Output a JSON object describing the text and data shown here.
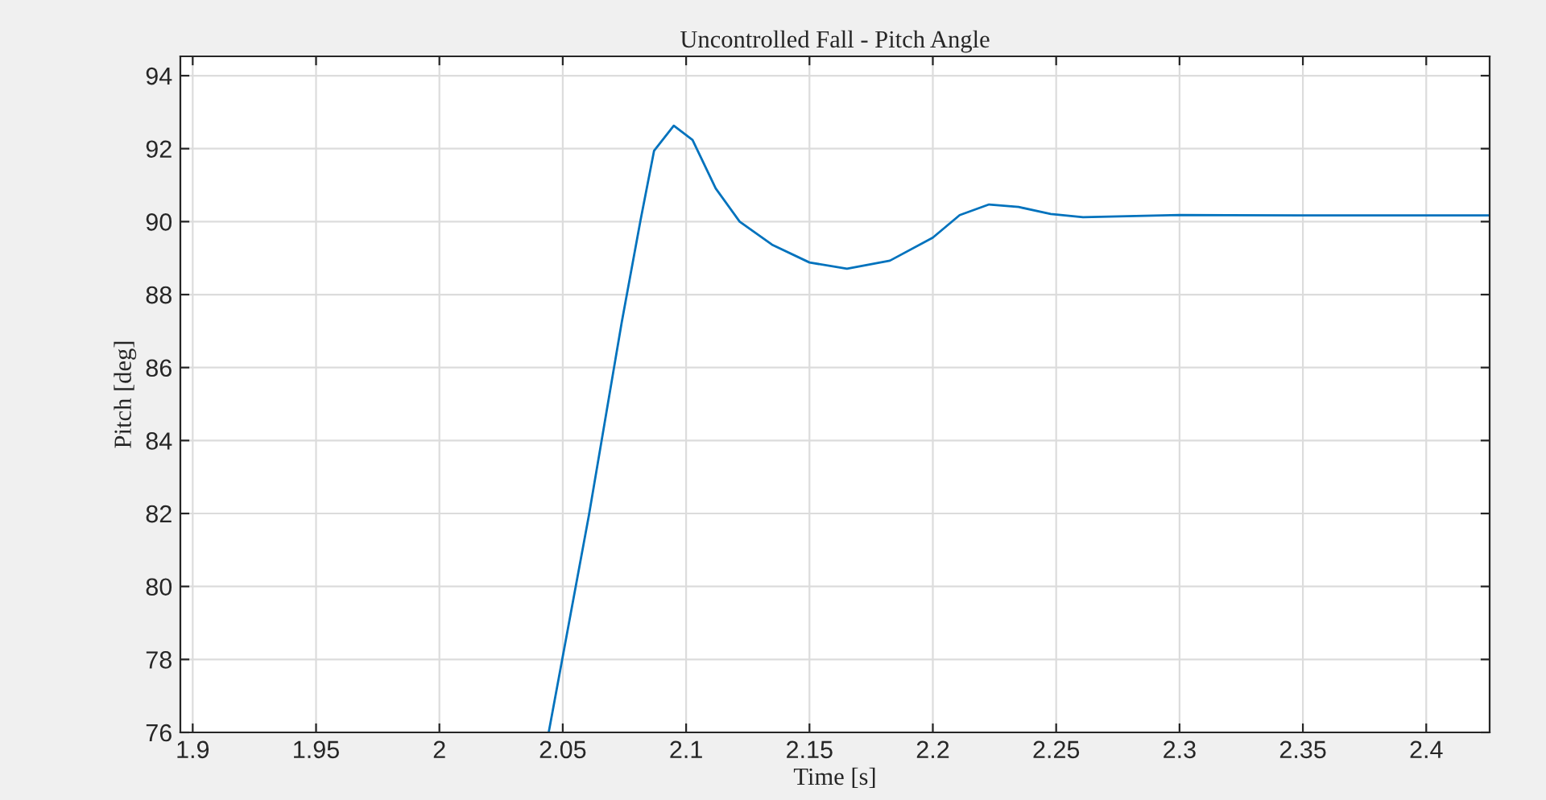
{
  "chart_data": {
    "type": "line",
    "title": "Uncontrolled Fall - Pitch Angle",
    "xlabel": "Time [s]",
    "ylabel": "Pitch [deg]",
    "x": [
      2.0443,
      2.0606,
      2.0739,
      2.0815,
      2.087,
      2.095,
      2.1026,
      2.112,
      2.1217,
      2.1348,
      2.15,
      2.1652,
      2.1826,
      2.2,
      2.2109,
      2.2228,
      2.2348,
      2.2478,
      2.2609,
      2.3,
      2.35,
      2.4257
    ],
    "series": [
      {
        "color": "#0072bd",
        "values": [
          76,
          81.95,
          87.24,
          90.03,
          91.94,
          92.63,
          92.24,
          90.91,
          90.0,
          89.37,
          88.88,
          88.71,
          88.93,
          89.56,
          90.18,
          90.47,
          90.4,
          90.21,
          90.12,
          90.18,
          90.17,
          90.17
        ]
      }
    ],
    "xlim": [
      1.895,
      2.4257
    ],
    "ylim": [
      76,
      94.53
    ],
    "xticks": [
      1.9,
      1.95,
      2,
      2.05,
      2.1,
      2.15,
      2.2,
      2.25,
      2.3,
      2.35,
      2.4
    ],
    "yticks": [
      76,
      78,
      80,
      82,
      84,
      86,
      88,
      90,
      92,
      94
    ],
    "grid": true,
    "marker": "none",
    "line_style": "solid"
  }
}
